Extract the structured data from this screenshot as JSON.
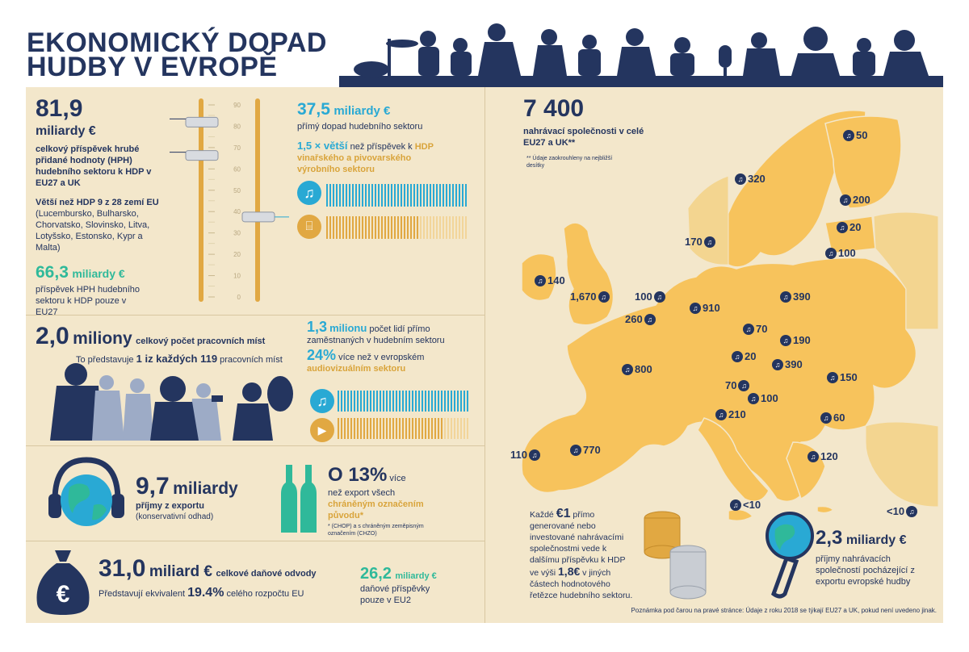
{
  "title": {
    "line1": "EKONOMICKÝ DOPAD",
    "line2": "HUDBY V EVROPĚ"
  },
  "gva": {
    "value": "81,9",
    "unit": "miliardy €",
    "desc": "celkový příspěvek hrubé přidané hodnoty (HPH) hudebního sektoru k HDP v EU27 a UK",
    "bigger_bold": "Větší než HDP 9 z 28 zemí EU",
    "bigger_rest": " (Lucembursko, Bulharsko, Chorvatsko, Slovinsko, Litva, Lotyšsko, Estonsko, Kypr a Malta)",
    "eu27_value": "66,3",
    "eu27_unit": "miliardy €",
    "eu27_desc": "příspěvek HPH hudebního sektoru k HDP pouze v EU27"
  },
  "scale": {
    "ticks": [
      "90",
      "80",
      "70",
      "60",
      "50",
      "40",
      "30",
      "20",
      "10",
      "0"
    ],
    "min": 0,
    "max": 90,
    "slider1": [
      81.9,
      66.3
    ],
    "slider2": [
      37.5
    ]
  },
  "direct": {
    "value": "37,5",
    "unit": "miliardy €",
    "desc": "přímý dopad hudebního sektoru",
    "compare_num": "1,5 × větší",
    "compare_rest": " než příspěvek k",
    "compare_sector": "HDP vinařského a pivovarského výrobního sektoru",
    "bar_music_fraction": 1.0,
    "bar_wine_fraction": 0.66
  },
  "jobs": {
    "value": "2,0",
    "unit": "miliony",
    "desc": "celkový počet pracovních míst",
    "represent_pre": "To představuje ",
    "represent_bold": "1 iz každých 119",
    "represent_post": " pracovních míst",
    "direct_value": "1,3",
    "direct_unit": "milionu",
    "direct_desc": " počet lidí přímo zaměstnaných v hudebním sektoru",
    "av_value": "24%",
    "av_rest": " více než v evropském",
    "av_sector": "audiovizuálním sektoru",
    "bar_music_fraction": 1.0,
    "bar_av_fraction": 0.8
  },
  "exports": {
    "value": "9,7",
    "unit": "miliardy",
    "desc": "příjmy z exportu",
    "note": "(konservativní odhad)",
    "pct_pre": "O 13%",
    "pct_rest": " více",
    "pct_line2": "než export všech",
    "pct_sector": "chráněným označením původu*",
    "footnote": "* (CHOP) a s chráněným zeměpisným označením (CHZO)"
  },
  "tax": {
    "value": "31,0",
    "unit": "miliard €",
    "desc": "celkové daňové odvody",
    "share_pre": "Představují ekvivalent ",
    "share_value": "19.4%",
    "share_post": " celého rozpočtu EU",
    "eu2_value": "26,2",
    "eu2_unit": "miliardy €",
    "eu2_desc": "daňové příspěvky pouze v EU2"
  },
  "labels": {
    "value": "7 400",
    "desc": "nahrávací společnosti v celé EU27 a UK**",
    "note": "** Údaje zaokrouhleny na nejbližší desítky"
  },
  "map_pins": [
    {
      "label": "50"
    },
    {
      "label": "320"
    },
    {
      "label": "200"
    },
    {
      "label": "20"
    },
    {
      "label": "100"
    },
    {
      "label": "170"
    },
    {
      "label": "140"
    },
    {
      "label": "1,670"
    },
    {
      "label": "100"
    },
    {
      "label": "910"
    },
    {
      "label": "390"
    },
    {
      "label": "260"
    },
    {
      "label": "70"
    },
    {
      "label": "190"
    },
    {
      "label": "20"
    },
    {
      "label": "390"
    },
    {
      "label": "800"
    },
    {
      "label": "150"
    },
    {
      "label": "70"
    },
    {
      "label": "100"
    },
    {
      "label": "210"
    },
    {
      "label": "60"
    },
    {
      "label": "110"
    },
    {
      "label": "770"
    },
    {
      "label": "120"
    },
    {
      "label": "<10"
    },
    {
      "label": "<10"
    }
  ],
  "multiplier": {
    "pre": "Každé ",
    "val1": "€1",
    "mid": " přímo generované nebo investované nahrávacími společnostmi vede k dalšímu příspěvku k HDP ve výši ",
    "val2": "1,8€",
    "post": " v jiných částech hodnotového řetězce hudebního sektoru."
  },
  "recorded": {
    "value": "2,3",
    "unit": "miliardy €",
    "desc": "příjmy nahrávacích společností pocházející z exportu evropské hudby"
  },
  "footnote": "Poznámka pod čarou na pravé stránce: Údaje z roku 2018 se týkají EU27 a UK, pokud není uvedeno jinak.",
  "colors": {
    "navy": "#24355f",
    "teal": "#2fb99a",
    "cyan": "#29a9d4",
    "gold": "#d9a43b",
    "map": "#f7c35c",
    "bg": "#f3e7cb"
  },
  "icons": [
    "music-note-icon",
    "wine-glass-icon",
    "play-icon",
    "globe-headphones-icon",
    "bottles-icon",
    "money-bag-icon",
    "coins-icon",
    "microphone-globe-icon"
  ]
}
